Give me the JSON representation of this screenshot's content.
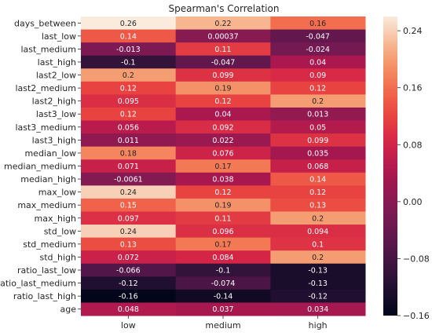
{
  "chart_data": {
    "type": "heatmap",
    "title": "Spearman's Correlation",
    "xlabel": "",
    "ylabel": "",
    "colormap": "rocket",
    "vmin": -0.16,
    "vmax": 0.26,
    "colorbar_ticks": [
      "0.24",
      "0.16",
      "0.08",
      "0.00",
      "−0.08",
      "−0.16"
    ],
    "colorbar_tick_values": [
      0.24,
      0.16,
      0.08,
      0.0,
      -0.08,
      -0.16
    ],
    "columns": [
      "low",
      "medium",
      "high"
    ],
    "rows": [
      "days_between",
      "last_low",
      "last_medium",
      "last_high",
      "last2_low",
      "last2_medium",
      "last2_high",
      "last3_low",
      "last3_medium",
      "last3_high",
      "median_low",
      "median_medium",
      "median_high",
      "max_low",
      "max_medium",
      "max_high",
      "std_low",
      "std_medium",
      "std_high",
      "ratio_last_low",
      "ratio_last_medium",
      "ratio_last_high",
      "age"
    ],
    "values": [
      [
        0.26,
        0.22,
        0.16
      ],
      [
        0.14,
        0.00037,
        -0.047
      ],
      [
        -0.013,
        0.11,
        -0.024
      ],
      [
        -0.1,
        -0.047,
        0.04
      ],
      [
        0.2,
        0.099,
        0.09
      ],
      [
        0.12,
        0.19,
        0.12
      ],
      [
        0.095,
        0.12,
        0.2
      ],
      [
        0.12,
        0.04,
        0.013
      ],
      [
        0.056,
        0.092,
        0.05
      ],
      [
        0.011,
        0.022,
        0.099
      ],
      [
        0.18,
        0.076,
        0.035
      ],
      [
        0.071,
        0.17,
        0.068
      ],
      [
        -0.0061,
        0.038,
        0.14
      ],
      [
        0.24,
        0.12,
        0.12
      ],
      [
        0.15,
        0.19,
        0.13
      ],
      [
        0.097,
        0.11,
        0.2
      ],
      [
        0.24,
        0.096,
        0.094
      ],
      [
        0.13,
        0.17,
        0.1
      ],
      [
        0.072,
        0.084,
        0.2
      ],
      [
        -0.066,
        -0.1,
        -0.13
      ],
      [
        -0.12,
        -0.074,
        -0.13
      ],
      [
        -0.16,
        -0.14,
        -0.12
      ],
      [
        0.048,
        0.037,
        0.034
      ]
    ],
    "labels": [
      [
        "0.26",
        "0.22",
        "0.16"
      ],
      [
        "0.14",
        "0.00037",
        "-0.047"
      ],
      [
        "-0.013",
        "0.11",
        "-0.024"
      ],
      [
        "-0.1",
        "-0.047",
        "0.04"
      ],
      [
        "0.2",
        "0.099",
        "0.09"
      ],
      [
        "0.12",
        "0.19",
        "0.12"
      ],
      [
        "0.095",
        "0.12",
        "0.2"
      ],
      [
        "0.12",
        "0.04",
        "0.013"
      ],
      [
        "0.056",
        "0.092",
        "0.05"
      ],
      [
        "0.011",
        "0.022",
        "0.099"
      ],
      [
        "0.18",
        "0.076",
        "0.035"
      ],
      [
        "0.071",
        "0.17",
        "0.068"
      ],
      [
        "-0.0061",
        "0.038",
        "0.14"
      ],
      [
        "0.24",
        "0.12",
        "0.12"
      ],
      [
        "0.15",
        "0.19",
        "0.13"
      ],
      [
        "0.097",
        "0.11",
        "0.2"
      ],
      [
        "0.24",
        "0.096",
        "0.094"
      ],
      [
        "0.13",
        "0.17",
        "0.1"
      ],
      [
        "0.072",
        "0.084",
        "0.2"
      ],
      [
        "-0.066",
        "-0.1",
        "-0.13"
      ],
      [
        "-0.12",
        "-0.074",
        "-0.13"
      ],
      [
        "-0.16",
        "-0.14",
        "-0.12"
      ],
      [
        "0.048",
        "0.037",
        "0.034"
      ]
    ]
  }
}
